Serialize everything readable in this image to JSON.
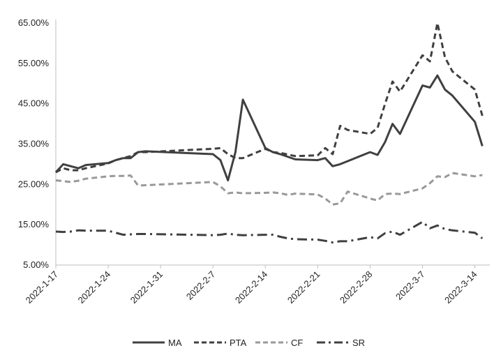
{
  "chart_data": {
    "type": "line",
    "title": "",
    "xlabel": "",
    "ylabel": "",
    "ylim": [
      5,
      65
    ],
    "y_ticks": [
      "5.00%",
      "15.00%",
      "25.00%",
      "35.00%",
      "45.00%",
      "55.00%",
      "65.00%"
    ],
    "y_tick_values": [
      5,
      15,
      25,
      35,
      45,
      55,
      65
    ],
    "x_ticks": [
      "2022-1-17",
      "2022-1-24",
      "2022-1-31",
      "2022-2-7",
      "2022-2-14",
      "2022-2-21",
      "2022-2-28",
      "2022-3-7",
      "2022-3-14"
    ],
    "x_tick_index": [
      0,
      7,
      14,
      21,
      28,
      35,
      42,
      49,
      56
    ],
    "x_count": 59,
    "grid": false,
    "legend": "bottom",
    "series": [
      {
        "name": "MA",
        "color": "#404040",
        "dash": "solid",
        "points": [
          [
            0,
            28
          ],
          [
            1,
            30
          ],
          [
            2,
            29.5
          ],
          [
            3,
            29
          ],
          [
            4,
            29.8
          ],
          [
            7,
            30.3
          ],
          [
            8,
            31
          ],
          [
            9,
            31.5
          ],
          [
            10,
            31.5
          ],
          [
            11,
            33
          ],
          [
            12,
            33.2
          ],
          [
            21,
            32.5
          ],
          [
            22,
            31
          ],
          [
            23,
            26
          ],
          [
            24,
            33
          ],
          [
            25,
            46
          ],
          [
            28,
            34
          ],
          [
            29,
            33
          ],
          [
            30,
            32.5
          ],
          [
            32,
            31.2
          ],
          [
            35,
            31
          ],
          [
            36,
            31.5
          ],
          [
            37,
            29.5
          ],
          [
            38,
            30
          ],
          [
            42,
            33
          ],
          [
            43,
            32.3
          ],
          [
            44,
            35.5
          ],
          [
            45,
            40
          ],
          [
            46,
            37.5
          ],
          [
            49,
            49.5
          ],
          [
            50,
            49
          ],
          [
            51,
            52
          ],
          [
            52,
            48.5
          ],
          [
            53,
            47
          ],
          [
            56,
            40.5
          ],
          [
            57,
            34.5
          ]
        ]
      },
      {
        "name": "PTA",
        "color": "#404040",
        "dash": "dashed",
        "points": [
          [
            0,
            28
          ],
          [
            1,
            29
          ],
          [
            2,
            28.5
          ],
          [
            3,
            28.5
          ],
          [
            4,
            29
          ],
          [
            7,
            30.2
          ],
          [
            8,
            31
          ],
          [
            9,
            31.5
          ],
          [
            10,
            32
          ],
          [
            11,
            33
          ],
          [
            12,
            33
          ],
          [
            21,
            33.8
          ],
          [
            22,
            34
          ],
          [
            23,
            32.5
          ],
          [
            24,
            31.5
          ],
          [
            25,
            31.5
          ],
          [
            28,
            33.8
          ],
          [
            29,
            33
          ],
          [
            30,
            32.8
          ],
          [
            32,
            32
          ],
          [
            35,
            32.2
          ],
          [
            36,
            34
          ],
          [
            37,
            32.5
          ],
          [
            38,
            39.5
          ],
          [
            39,
            38.5
          ],
          [
            42,
            37.5
          ],
          [
            43,
            39
          ],
          [
            44,
            45
          ],
          [
            45,
            50.5
          ],
          [
            46,
            48
          ],
          [
            49,
            57
          ],
          [
            50,
            55.5
          ],
          [
            51,
            65
          ],
          [
            52,
            56.5
          ],
          [
            53,
            53
          ],
          [
            56,
            48.5
          ],
          [
            57,
            42
          ]
        ]
      },
      {
        "name": "CF",
        "color": "#999999",
        "dash": "dashed",
        "points": [
          [
            0,
            26
          ],
          [
            1,
            25.8
          ],
          [
            2,
            25.6
          ],
          [
            3,
            25.9
          ],
          [
            4,
            26.4
          ],
          [
            7,
            27
          ],
          [
            8,
            27.1
          ],
          [
            9,
            27.1
          ],
          [
            10,
            27.2
          ],
          [
            11,
            24.7
          ],
          [
            12,
            24.8
          ],
          [
            21,
            25.6
          ],
          [
            22,
            24.5
          ],
          [
            23,
            22.8
          ],
          [
            24,
            23
          ],
          [
            25,
            22.8
          ],
          [
            28,
            22.9
          ],
          [
            29,
            23
          ],
          [
            30,
            22.8
          ],
          [
            31,
            22.4
          ],
          [
            32,
            22.7
          ],
          [
            35,
            22.5
          ],
          [
            36,
            21.5
          ],
          [
            37,
            20
          ],
          [
            38,
            20.3
          ],
          [
            39,
            23.2
          ],
          [
            42,
            21.5
          ],
          [
            43,
            21
          ],
          [
            44,
            22.6
          ],
          [
            45,
            22.7
          ],
          [
            46,
            22.6
          ],
          [
            49,
            24
          ],
          [
            50,
            25.3
          ],
          [
            51,
            27
          ],
          [
            52,
            26.8
          ],
          [
            53,
            27.8
          ],
          [
            56,
            27
          ],
          [
            57,
            27.3
          ]
        ]
      },
      {
        "name": "SR",
        "color": "#404040",
        "dash": "dashdot",
        "points": [
          [
            0,
            13.3
          ],
          [
            1,
            13.2
          ],
          [
            2,
            13.3
          ],
          [
            3,
            13.6
          ],
          [
            4,
            13.5
          ],
          [
            7,
            13.5
          ],
          [
            8,
            13
          ],
          [
            9,
            12.5
          ],
          [
            10,
            12.6
          ],
          [
            11,
            12.7
          ],
          [
            12,
            12.7
          ],
          [
            21,
            12.4
          ],
          [
            22,
            12.5
          ],
          [
            23,
            12.8
          ],
          [
            24,
            12.5
          ],
          [
            25,
            12.4
          ],
          [
            28,
            12.5
          ],
          [
            29,
            12.5
          ],
          [
            30,
            12
          ],
          [
            31,
            11.6
          ],
          [
            32,
            11.4
          ],
          [
            35,
            11.3
          ],
          [
            36,
            11
          ],
          [
            37,
            10.6
          ],
          [
            38,
            10.9
          ],
          [
            39,
            10.9
          ],
          [
            42,
            11.9
          ],
          [
            43,
            11.6
          ],
          [
            44,
            12.9
          ],
          [
            45,
            13.3
          ],
          [
            46,
            12.5
          ],
          [
            49,
            15.7
          ],
          [
            50,
            14.1
          ],
          [
            51,
            14.8
          ],
          [
            52,
            13.9
          ],
          [
            53,
            13.6
          ],
          [
            56,
            13
          ],
          [
            57,
            11.6
          ]
        ]
      }
    ]
  }
}
